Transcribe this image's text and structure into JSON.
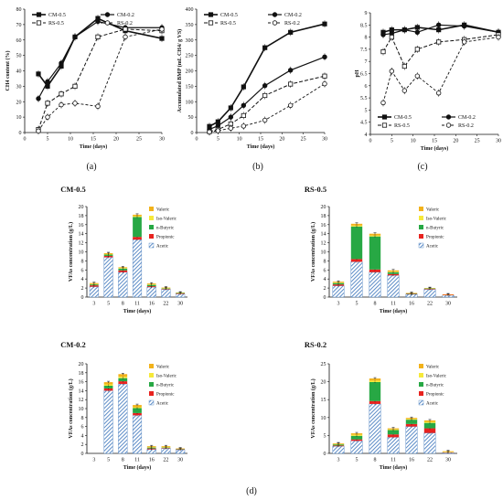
{
  "figure_labels": [
    "(a)",
    "(b)",
    "(c)",
    "(d)"
  ],
  "colors": {
    "acetic": "#4a7fc0",
    "propionic": "#e8231f",
    "butyric": "#27a844",
    "isovaleric": "#f6e93a",
    "valeric": "#f2b21a",
    "line": "#111111"
  },
  "chart_data": [
    {
      "type": "line",
      "panel": "(a)",
      "xlabel": "Time (days)",
      "ylabel": "CH4 content (%)",
      "xlim": [
        0,
        30
      ],
      "ylim": [
        0,
        80
      ],
      "xticks": [
        "0",
        "5",
        "10",
        "15",
        "20",
        "25",
        "30"
      ],
      "yticks": [
        "0",
        "10",
        "20",
        "30",
        "40",
        "50",
        "60",
        "70",
        "80"
      ],
      "legend": "top",
      "series": [
        {
          "name": "CM-0.5",
          "x": [
            3,
            5,
            8,
            11,
            16,
            22,
            30
          ],
          "y": [
            38,
            30,
            43,
            62,
            74,
            66,
            61
          ]
        },
        {
          "name": "CM-0.2",
          "x": [
            3,
            5,
            8,
            11,
            16,
            22,
            30
          ],
          "y": [
            22,
            33,
            45,
            62,
            72,
            68,
            68
          ]
        },
        {
          "name": "RS-0.5",
          "x": [
            3,
            5,
            8,
            11,
            16,
            22,
            30
          ],
          "y": [
            2,
            19,
            25,
            30,
            62,
            67,
            66
          ]
        },
        {
          "name": "RS-0.2",
          "x": [
            3,
            5,
            8,
            11,
            16,
            22,
            30
          ],
          "y": [
            1,
            10,
            18,
            19,
            17,
            62,
            67
          ]
        }
      ]
    },
    {
      "type": "line",
      "panel": "(b)",
      "xlabel": "Time (days)",
      "ylabel": "Accumulated BMP (mL CH4/ g VS)",
      "xlim": [
        0,
        30
      ],
      "ylim": [
        0,
        400
      ],
      "xticks": [
        "0",
        "5",
        "10",
        "15",
        "20",
        "25",
        "30"
      ],
      "yticks": [
        "0",
        "50",
        "100",
        "150",
        "200",
        "250",
        "300",
        "350",
        "400"
      ],
      "legend": "top",
      "series": [
        {
          "name": "CM-0.5",
          "x": [
            3,
            5,
            8,
            11,
            16,
            22,
            30
          ],
          "y": [
            20,
            35,
            80,
            148,
            275,
            325,
            352
          ]
        },
        {
          "name": "CM-0.2",
          "x": [
            3,
            5,
            8,
            11,
            16,
            22,
            30
          ],
          "y": [
            10,
            22,
            50,
            88,
            152,
            202,
            245
          ]
        },
        {
          "name": "RS-0.5",
          "x": [
            3,
            5,
            8,
            11,
            16,
            22,
            30
          ],
          "y": [
            3,
            10,
            28,
            55,
            120,
            157,
            183
          ]
        },
        {
          "name": "RS-0.2",
          "x": [
            3,
            5,
            8,
            11,
            16,
            22,
            30
          ],
          "y": [
            2,
            6,
            14,
            21,
            40,
            88,
            158
          ]
        }
      ]
    },
    {
      "type": "line",
      "panel": "(c)",
      "xlabel": "Time (days)",
      "ylabel": "pH",
      "xlim": [
        0,
        30
      ],
      "ylim": [
        4,
        9
      ],
      "xticks": [
        "0",
        "5",
        "10",
        "15",
        "20",
        "25",
        "30"
      ],
      "yticks": [
        "4",
        "4.5",
        "5",
        "5.5",
        "6",
        "6.5",
        "7",
        "7.5",
        "8",
        "8.5",
        "9"
      ],
      "legend": "bottom",
      "series": [
        {
          "name": "CM-0.5",
          "x": [
            3,
            5,
            8,
            11,
            16,
            22,
            30
          ],
          "y": [
            8.2,
            8.3,
            8.3,
            8.4,
            8.3,
            8.5,
            8.2
          ]
        },
        {
          "name": "CM-0.2",
          "x": [
            3,
            5,
            8,
            11,
            16,
            22,
            30
          ],
          "y": [
            8.1,
            8.15,
            8.3,
            8.2,
            8.5,
            8.45,
            8.2
          ]
        },
        {
          "name": "RS-0.5",
          "x": [
            3,
            5,
            8,
            11,
            16,
            22,
            30
          ],
          "y": [
            7.4,
            8.0,
            6.8,
            7.5,
            7.8,
            7.9,
            8.1
          ]
        },
        {
          "name": "RS-0.2",
          "x": [
            3,
            5,
            8,
            11,
            16,
            22,
            30
          ],
          "y": [
            5.3,
            6.6,
            5.8,
            6.4,
            5.7,
            7.8,
            8.0
          ]
        }
      ]
    },
    {
      "type": "bar",
      "stacked": true,
      "title": "CM-0.5",
      "xlabel": "Time (days)",
      "ylabel": "VFAs concentration (g/L)",
      "ylim": [
        0,
        20
      ],
      "yticks": [
        "0",
        "2",
        "4",
        "6",
        "8",
        "10",
        "12",
        "14",
        "16",
        "18",
        "20"
      ],
      "categories": [
        "3",
        "5",
        "8",
        "11",
        "16",
        "22",
        "30"
      ],
      "legend": "top-right",
      "series": [
        {
          "name": "Acetic",
          "values": [
            2.3,
            8.8,
            5.5,
            12.7,
            2.2,
            1.7,
            0.7
          ]
        },
        {
          "name": "Propionic",
          "values": [
            0.3,
            0.3,
            0.4,
            0.6,
            0.2,
            0.1,
            0.1
          ]
        },
        {
          "name": "n-Butyric",
          "values": [
            0.2,
            0.3,
            0.4,
            4.4,
            0.3,
            0.1,
            0.1
          ]
        },
        {
          "name": "Iso-Valeric",
          "values": [
            0.1,
            0.1,
            0.1,
            0.2,
            0.1,
            0.1,
            0.0
          ]
        },
        {
          "name": "Valeric",
          "values": [
            0.2,
            0.2,
            0.2,
            0.3,
            0.2,
            0.1,
            0.1
          ]
        }
      ]
    },
    {
      "type": "bar",
      "stacked": true,
      "title": "RS-0.5",
      "xlabel": "Time (days)",
      "ylabel": "VFAs concentration (g/L)",
      "ylim": [
        0,
        20
      ],
      "yticks": [
        "0",
        "2",
        "4",
        "6",
        "8",
        "10",
        "12",
        "14",
        "16",
        "18",
        "20"
      ],
      "categories": [
        "3",
        "5",
        "8",
        "11",
        "16",
        "22",
        "30"
      ],
      "legend": "top-right",
      "series": [
        {
          "name": "Acetic",
          "values": [
            2.5,
            7.8,
            5.5,
            4.8,
            0.6,
            1.7,
            0.4
          ]
        },
        {
          "name": "Propionic",
          "values": [
            0.3,
            0.6,
            0.6,
            0.3,
            0.1,
            0.1,
            0.1
          ]
        },
        {
          "name": "n-Butyric",
          "values": [
            0.3,
            7.2,
            7.3,
            0.4,
            0.1,
            0.1,
            0.0
          ]
        },
        {
          "name": "Iso-Valeric",
          "values": [
            0.1,
            0.2,
            0.2,
            0.1,
            0.0,
            0.0,
            0.0
          ]
        },
        {
          "name": "Valeric",
          "values": [
            0.2,
            0.4,
            0.4,
            0.3,
            0.1,
            0.1,
            0.1
          ]
        }
      ]
    },
    {
      "type": "bar",
      "stacked": true,
      "title": "CM-0.2",
      "xlabel": "Time (days)",
      "ylabel": "VFAs concentration (g/L)",
      "ylim": [
        0,
        20
      ],
      "yticks": [
        "0",
        "2",
        "4",
        "6",
        "8",
        "10",
        "12",
        "14",
        "16",
        "18",
        "20"
      ],
      "categories": [
        "3",
        "5",
        "8",
        "11",
        "16",
        "22",
        "30"
      ],
      "legend": "top-right",
      "series": [
        {
          "name": "Acetic",
          "values": [
            0,
            14.0,
            15.5,
            8.5,
            0.9,
            1.1,
            0.8
          ]
        },
        {
          "name": "Propionic",
          "values": [
            0,
            0.5,
            0.6,
            0.5,
            0.2,
            0.1,
            0.1
          ]
        },
        {
          "name": "n-Butyric",
          "values": [
            0,
            0.6,
            0.7,
            1.1,
            0.2,
            0.1,
            0.1
          ]
        },
        {
          "name": "Iso-Valeric",
          "values": [
            0,
            0.3,
            0.3,
            0.2,
            0.1,
            0.1,
            0.0
          ]
        },
        {
          "name": "Valeric",
          "values": [
            0,
            0.5,
            0.6,
            0.5,
            0.2,
            0.2,
            0.1
          ]
        }
      ]
    },
    {
      "type": "bar",
      "stacked": true,
      "title": "RS-0.2",
      "xlabel": "Time (days)",
      "ylabel": "VFAs concentration (g/L)",
      "ylim": [
        0,
        25
      ],
      "yticks": [
        "0",
        "5",
        "10",
        "15",
        "20",
        "25"
      ],
      "categories": [
        "3",
        "5",
        "8",
        "11",
        "16",
        "22",
        "30"
      ],
      "legend": "top-right",
      "series": [
        {
          "name": "Acetic",
          "values": [
            2.0,
            3.5,
            13.8,
            4.5,
            7.5,
            5.7,
            0.2
          ]
        },
        {
          "name": "Propionic",
          "values": [
            0.2,
            0.4,
            0.8,
            0.8,
            0.7,
            1.3,
            0.1
          ]
        },
        {
          "name": "n-Butyric",
          "values": [
            0.3,
            1.0,
            5.3,
            1.2,
            1.2,
            1.5,
            0.0
          ]
        },
        {
          "name": "Iso-Valeric",
          "values": [
            0.1,
            0.3,
            0.4,
            0.2,
            0.2,
            0.3,
            0.1
          ]
        },
        {
          "name": "Valeric",
          "values": [
            0.2,
            0.4,
            0.6,
            0.3,
            0.3,
            0.4,
            0.2
          ]
        }
      ]
    }
  ]
}
